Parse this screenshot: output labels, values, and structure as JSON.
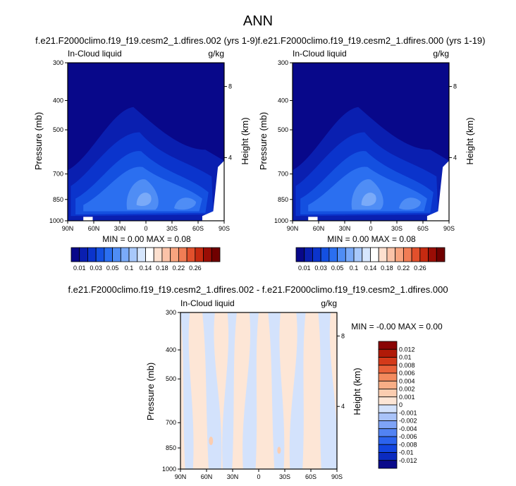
{
  "page_title": "ANN",
  "colors": {
    "abs_scale": [
      "#08088a",
      "#0a1fb0",
      "#0b34cc",
      "#1450e0",
      "#2b6ff0",
      "#4f8df5",
      "#7aaaf8",
      "#a8c8fb",
      "#d6e6fd",
      "#ffffff",
      "#fde0cf",
      "#fbc3a8",
      "#f8a47f",
      "#f17d55",
      "#e2502c",
      "#c62a10",
      "#9a0d05",
      "#700000"
    ],
    "diff_scale": [
      "#0a0a8a",
      "#0b2bc0",
      "#1245e0",
      "#2b63ee",
      "#5283f3",
      "#7ea3f6",
      "#a9c3f9",
      "#d3e2fc",
      "#fde6d6",
      "#fbcdb0",
      "#f8ae86",
      "#f38a5e",
      "#e9623a",
      "#d43a1a",
      "#b01a08",
      "#8a0505"
    ]
  },
  "chart_data": [
    {
      "type": "heatmap",
      "panel_title": "f.e21.F2000climo.f19_f19.cesm2_1.dfires.002 (yrs 1-9)",
      "left_label": "In-Cloud liquid",
      "right_label": "g/kg",
      "ylabel": "Pressure (mb)",
      "ylabel_right": "Height (km)",
      "yticks": [
        "300",
        "400",
        "500",
        "700",
        "850",
        "1000"
      ],
      "ytick_values": [
        300,
        400,
        500,
        700,
        850,
        1000
      ],
      "yticks_right": [
        "8",
        "4"
      ],
      "xticks": [
        "90N",
        "60N",
        "30N",
        "0",
        "30S",
        "60S",
        "90S"
      ],
      "stats": "MIN =  0.00   MAX =  0.08",
      "colorbar_labels": [
        "0.01",
        "0.03",
        "0.05",
        "0.1",
        "0.14",
        "0.18",
        "0.22",
        "0.26"
      ]
    },
    {
      "type": "heatmap",
      "panel_title": "f.e21.F2000climo.f19_f19.cesm2_1.dfires.000 (yrs 1-19)",
      "left_label": "In-Cloud liquid",
      "right_label": "g/kg",
      "ylabel": "Pressure (mb)",
      "ylabel_right": "Height (km)",
      "yticks": [
        "300",
        "400",
        "500",
        "700",
        "850",
        "1000"
      ],
      "ytick_values": [
        300,
        400,
        500,
        700,
        850,
        1000
      ],
      "yticks_right": [
        "8",
        "4"
      ],
      "xticks": [
        "90N",
        "60N",
        "30N",
        "0",
        "30S",
        "60S",
        "90S"
      ],
      "stats": "MIN =  0.00   MAX =  0.08",
      "colorbar_labels": [
        "0.01",
        "0.03",
        "0.05",
        "0.1",
        "0.14",
        "0.18",
        "0.22",
        "0.26"
      ]
    },
    {
      "type": "heatmap",
      "panel_title": "f.e21.F2000climo.f19_f19.cesm2_1.dfires.002 - f.e21.F2000climo.f19_f19.cesm2_1.dfires.000",
      "left_label": "In-Cloud liquid",
      "right_label": "g/kg",
      "ylabel": "Pressure (mb)",
      "ylabel_right": "Height (km)",
      "yticks": [
        "300",
        "400",
        "500",
        "700",
        "850",
        "1000"
      ],
      "ytick_values": [
        300,
        400,
        500,
        700,
        850,
        1000
      ],
      "yticks_right": [
        "8",
        "4"
      ],
      "xticks": [
        "90N",
        "60N",
        "30N",
        "0",
        "30S",
        "60S",
        "90S"
      ],
      "stats": "MIN = -0.00   MAX =  0.00",
      "colorbar_labels": [
        "0.012",
        "0.01",
        "0.008",
        "0.006",
        "0.004",
        "0.002",
        "0.001",
        "0",
        "-0.001",
        "-0.002",
        "-0.004",
        "-0.006",
        "-0.008",
        "-0.01",
        "-0.012"
      ]
    }
  ]
}
